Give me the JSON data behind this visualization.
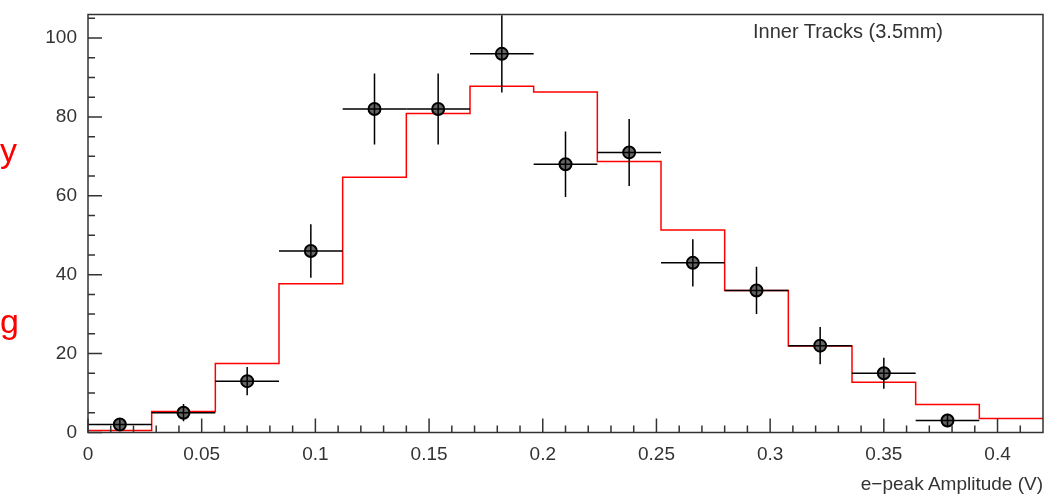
{
  "chart_data": {
    "type": "histogram",
    "title": "Inner Tracks (3.5mm)",
    "xlabel": "e−peak Amplitude (V)",
    "annotations": [
      "y",
      "g"
    ],
    "bins": [
      0,
      0.028,
      0.056,
      0.084,
      0.112,
      0.14,
      0.168,
      0.196,
      0.224,
      0.252,
      0.28,
      0.308,
      0.336,
      0.364,
      0.392,
      0.42
    ],
    "values": [
      0.5,
      5.3,
      17.5,
      37.7,
      64.7,
      80.9,
      87.8,
      86.3,
      68.7,
      51.3,
      36,
      21.9,
      12.7,
      7.1,
      3.5
    ],
    "color": "#ff0000",
    "series": [
      {
        "type": "scatter",
        "color": "#000000",
        "marker": "circle",
        "x": [
          0.014,
          0.042,
          0.07,
          0.098,
          0.126,
          0.154,
          0.182,
          0.21,
          0.238,
          0.266,
          0.294,
          0.322,
          0.35,
          0.378
        ],
        "values": [
          2,
          5,
          13,
          46,
          82,
          82,
          96,
          68,
          71,
          43,
          36,
          22,
          15,
          3
        ],
        "errors": [
          1.4,
          2.2,
          3.6,
          6.8,
          9,
          9,
          9.8,
          8.3,
          8.5,
          6,
          6,
          4.7,
          3.9,
          1.7
        ],
        "xerrors": [
          0.014,
          0.014,
          0.014,
          0.014,
          0.014,
          0.014,
          0.014,
          0.014,
          0.014,
          0.014,
          0.014,
          0.014,
          0.014,
          0.014
        ]
      }
    ],
    "xlim": [
      0,
      0.42
    ],
    "xticks": [
      0,
      {
        "value": 0.01,
        "label": null
      },
      {
        "value": 0.02,
        "label": null
      },
      {
        "value": 0.03,
        "label": null
      },
      {
        "value": 0.04,
        "label": null
      },
      0.05,
      {
        "value": 0.06,
        "label": null
      },
      {
        "value": 0.07,
        "label": null
      },
      {
        "value": 0.08,
        "label": null
      },
      {
        "value": 0.09,
        "label": null
      },
      0.1,
      {
        "value": 0.11,
        "label": null
      },
      {
        "value": 0.12,
        "label": null
      },
      {
        "value": 0.13,
        "label": null
      },
      {
        "value": 0.14,
        "label": null
      },
      0.15,
      {
        "value": 0.16,
        "label": null
      },
      {
        "value": 0.17,
        "label": null
      },
      {
        "value": 0.18,
        "label": null
      },
      {
        "value": 0.19,
        "label": null
      },
      0.2,
      {
        "value": 0.21,
        "label": null
      },
      {
        "value": 0.22,
        "label": null
      },
      {
        "value": 0.23,
        "label": null
      },
      {
        "value": 0.24,
        "label": null
      },
      0.25,
      {
        "value": 0.26,
        "label": null
      },
      {
        "value": 0.27,
        "label": null
      },
      {
        "value": 0.28,
        "label": null
      },
      {
        "value": 0.29,
        "label": null
      },
      0.3,
      {
        "value": 0.31,
        "label": null
      },
      {
        "value": 0.32,
        "label": null
      },
      {
        "value": 0.33,
        "label": null
      },
      {
        "value": 0.34,
        "label": null
      },
      0.35,
      {
        "value": 0.36,
        "label": null
      },
      {
        "value": 0.37,
        "label": null
      },
      {
        "value": 0.38,
        "label": null
      },
      {
        "value": 0.39,
        "label": null
      },
      0.4,
      {
        "value": 0.41,
        "label": null
      }
    ],
    "ylim": [
      0,
      106
    ],
    "yticks": [
      0,
      {
        "value": 5,
        "label": null
      },
      {
        "value": 10,
        "label": null
      },
      {
        "value": 15,
        "label": null
      },
      20,
      {
        "value": 25,
        "label": null
      },
      {
        "value": 30,
        "label": null
      },
      {
        "value": 35,
        "label": null
      },
      40,
      {
        "value": 45,
        "label": null
      },
      {
        "value": 50,
        "label": null
      },
      {
        "value": 55,
        "label": null
      },
      60,
      {
        "value": 65,
        "label": null
      },
      {
        "value": 70,
        "label": null
      },
      {
        "value": 75,
        "label": null
      },
      80,
      {
        "value": 85,
        "label": null
      },
      {
        "value": 90,
        "label": null
      },
      {
        "value": 95,
        "label": null
      },
      100,
      {
        "value": 105,
        "label": null
      }
    ],
    "grid": false,
    "legend": false
  }
}
